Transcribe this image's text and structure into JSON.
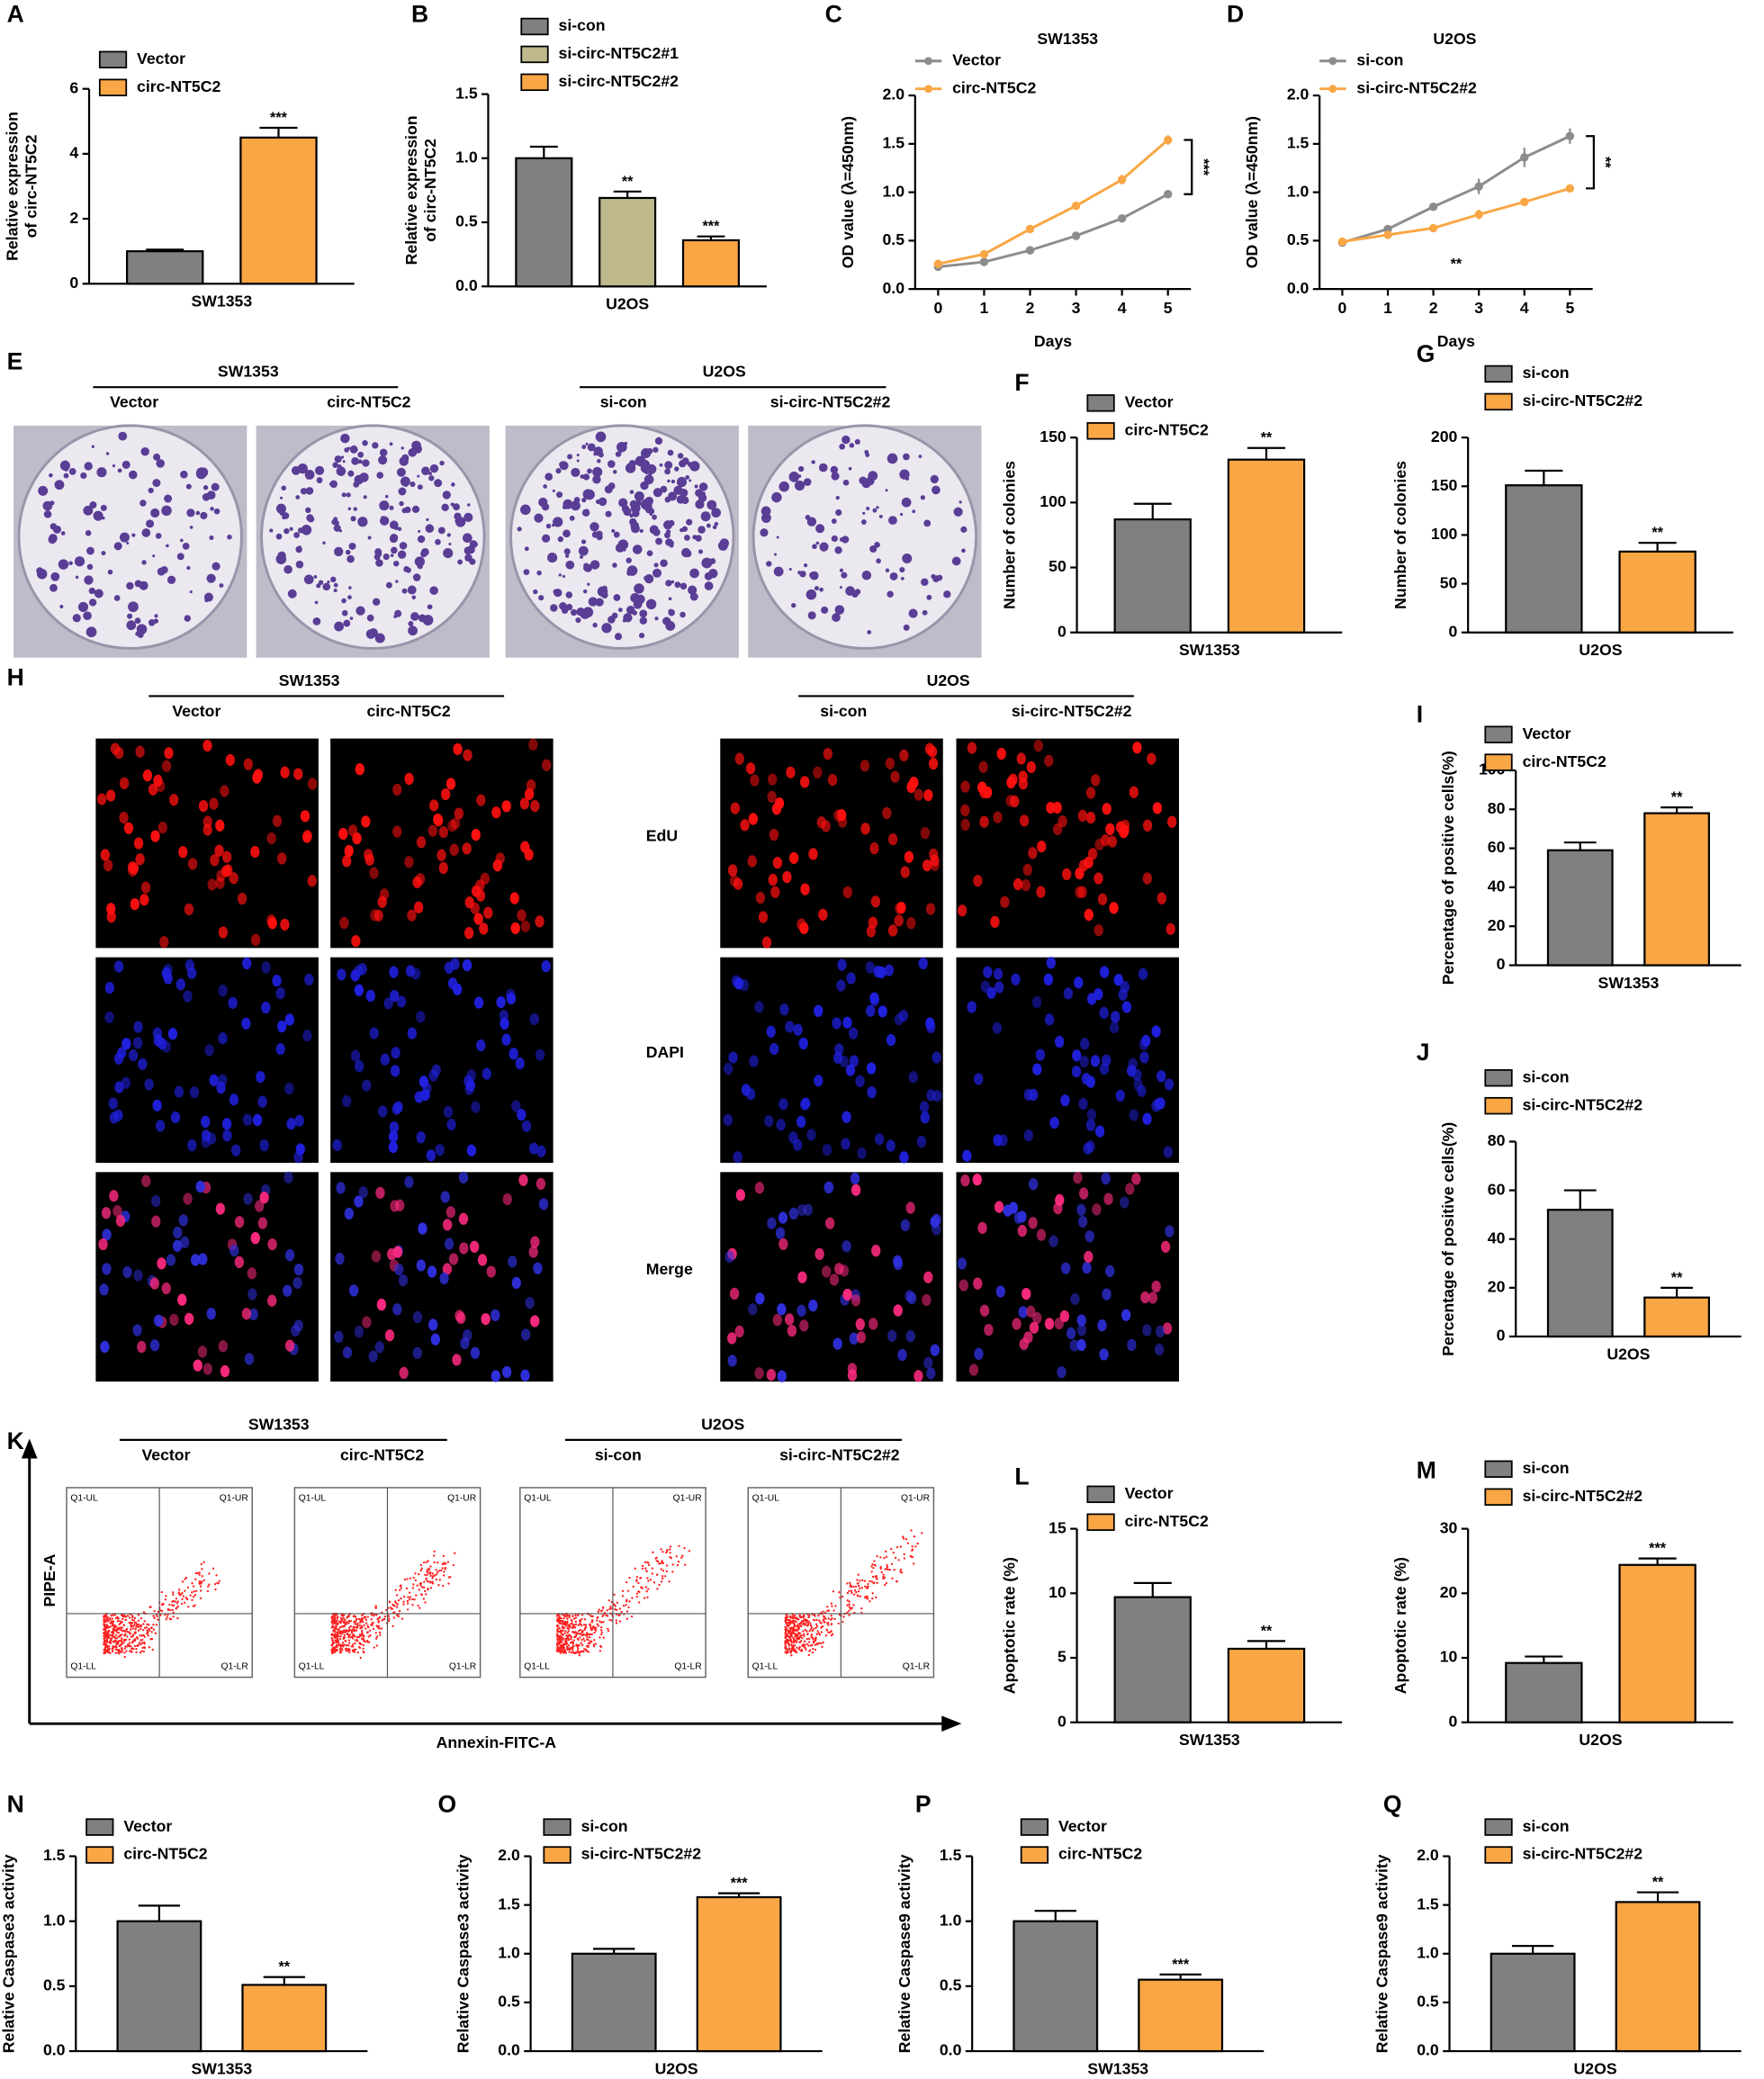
{
  "chart_data": [
    {
      "panel": "A",
      "type": "bar",
      "ylabel": [
        "Relative expression",
        "of circ-NT5C2"
      ],
      "xlabel": "SW1353",
      "ylim": [
        0,
        6
      ],
      "yticks": [
        0,
        2,
        4,
        6
      ],
      "series": [
        {
          "name": "Vector",
          "color": "#808080",
          "values": [
            1.0
          ],
          "errors": [
            0.05
          ]
        },
        {
          "name": "circ-NT5C2",
          "color": "#f9a645",
          "values": [
            4.5
          ],
          "errors": [
            0.3
          ],
          "sig": "***"
        }
      ]
    },
    {
      "panel": "B",
      "type": "bar",
      "ylabel": [
        "Relative expression",
        "of circ-NT5C2"
      ],
      "xlabel": "U2OS",
      "ylim": [
        0,
        1.5
      ],
      "yticks": [
        {
          "value": 0,
          "label": "0.0"
        },
        0.5,
        {
          "value": 1,
          "label": "1.0"
        },
        1.5
      ],
      "series": [
        {
          "name": "si-con",
          "color": "#808080",
          "values": [
            1.0
          ],
          "errors": [
            0.09
          ]
        },
        {
          "name": "si-circ-NT5C2#1",
          "color": "#bdb98c",
          "values": [
            0.69
          ],
          "errors": [
            0.05
          ],
          "sig": "**"
        },
        {
          "name": "si-circ-NT5C2#2",
          "color": "#f9a645",
          "values": [
            0.36
          ],
          "errors": [
            0.03
          ],
          "sig": "***"
        }
      ]
    },
    {
      "panel": "C",
      "type": "line",
      "title": "SW1353",
      "ylabel": [
        "OD value (λ=450nm)"
      ],
      "xlabel": "Days",
      "x": [
        0,
        1,
        2,
        3,
        4,
        5
      ],
      "xlim": [
        -0.5,
        5.5
      ],
      "xticks": [
        0,
        1,
        2,
        3,
        4,
        5
      ],
      "ylim": [
        0,
        2
      ],
      "yticks": [
        {
          "value": 0,
          "label": "0.0"
        },
        0.5,
        {
          "value": 1,
          "label": "1.0"
        },
        1.5,
        {
          "value": 2,
          "label": "2.0"
        }
      ],
      "sig": "***",
      "series": [
        {
          "name": "Vector",
          "color": "#8c8c8c",
          "values": [
            0.23,
            0.28,
            0.4,
            0.55,
            0.73,
            0.98
          ],
          "errors": [
            0.02,
            0.02,
            0.04,
            0.02,
            0.03,
            0.04
          ]
        },
        {
          "name": "circ-NT5C2",
          "color": "#f9a645",
          "values": [
            0.26,
            0.36,
            0.62,
            0.86,
            1.13,
            1.54
          ],
          "errors": [
            0.02,
            0.02,
            0.04,
            0.04,
            0.05,
            0.05
          ]
        }
      ]
    },
    {
      "panel": "D",
      "type": "line",
      "title": "U2OS",
      "ylabel": [
        "OD value (λ=450nm)"
      ],
      "xlabel": "Days",
      "x": [
        0,
        1,
        2,
        3,
        4,
        5
      ],
      "xlim": [
        -0.5,
        5.5
      ],
      "xticks": [
        0,
        1,
        2,
        3,
        4,
        5
      ],
      "ylim": [
        0,
        2
      ],
      "yticks": [
        {
          "value": 0,
          "label": "0.0"
        },
        0.5,
        {
          "value": 1,
          "label": "1.0"
        },
        1.5,
        {
          "value": 2,
          "label": "2.0"
        }
      ],
      "sig": "**",
      "annotation": "**",
      "series": [
        {
          "name": "si-con",
          "color": "#8c8c8c",
          "values": [
            0.48,
            0.62,
            0.85,
            1.06,
            1.36,
            1.58
          ],
          "errors": [
            0.03,
            0.03,
            0.03,
            0.08,
            0.1,
            0.08
          ]
        },
        {
          "name": "si-circ-NT5C2#2",
          "color": "#f9a645",
          "values": [
            0.49,
            0.56,
            0.63,
            0.77,
            0.9,
            1.04
          ],
          "errors": [
            0.03,
            0.02,
            0.02,
            0.05,
            0.03,
            0.04
          ]
        }
      ]
    },
    {
      "panel": "F",
      "type": "bar",
      "ylabel": [
        "Number of colonies"
      ],
      "xlabel": "SW1353",
      "ylim": [
        0,
        150
      ],
      "yticks": [
        0,
        50,
        100,
        150
      ],
      "series": [
        {
          "name": "Vector",
          "color": "#808080",
          "values": [
            87
          ],
          "errors": [
            12
          ]
        },
        {
          "name": "circ-NT5C2",
          "color": "#f9a645",
          "values": [
            133
          ],
          "errors": [
            9
          ],
          "sig": "**"
        }
      ]
    },
    {
      "panel": "G",
      "type": "bar",
      "ylabel": [
        "Number of colonies"
      ],
      "xlabel": "U2OS",
      "ylim": [
        0,
        200
      ],
      "yticks": [
        0,
        50,
        100,
        150,
        200
      ],
      "series": [
        {
          "name": "si-con",
          "color": "#808080",
          "values": [
            151
          ],
          "errors": [
            15
          ]
        },
        {
          "name": "si-circ-NT5C2#2",
          "color": "#f9a645",
          "values": [
            83
          ],
          "errors": [
            9
          ],
          "sig": "**"
        }
      ]
    },
    {
      "panel": "I",
      "type": "bar",
      "ylabel": [
        "Percentage of positive cells(%)"
      ],
      "xlabel": "SW1353",
      "ylim": [
        0,
        100
      ],
      "yticks": [
        0,
        20,
        40,
        60,
        80,
        100
      ],
      "series": [
        {
          "name": "Vector",
          "color": "#808080",
          "values": [
            59
          ],
          "errors": [
            4
          ]
        },
        {
          "name": "circ-NT5C2",
          "color": "#f9a645",
          "values": [
            78
          ],
          "errors": [
            3
          ],
          "sig": "**"
        }
      ]
    },
    {
      "panel": "J",
      "type": "bar",
      "ylabel": [
        "Percentage of positive cells(%)"
      ],
      "xlabel": "U2OS",
      "ylim": [
        0,
        80
      ],
      "yticks": [
        0,
        20,
        40,
        60,
        80
      ],
      "series": [
        {
          "name": "si-con",
          "color": "#808080",
          "values": [
            52
          ],
          "errors": [
            8
          ]
        },
        {
          "name": "si-circ-NT5C2#2",
          "color": "#f9a645",
          "values": [
            16
          ],
          "errors": [
            4
          ],
          "sig": "**"
        }
      ]
    },
    {
      "panel": "L",
      "type": "bar",
      "ylabel": [
        "Apoptotic rate (%)"
      ],
      "xlabel": "SW1353",
      "ylim": [
        0,
        15
      ],
      "yticks": [
        0,
        5,
        10,
        15
      ],
      "series": [
        {
          "name": "Vector",
          "color": "#808080",
          "values": [
            9.7
          ],
          "errors": [
            1.1
          ]
        },
        {
          "name": "circ-NT5C2",
          "color": "#f9a645",
          "values": [
            5.7
          ],
          "errors": [
            0.6
          ],
          "sig": "**"
        }
      ]
    },
    {
      "panel": "M",
      "type": "bar",
      "ylabel": [
        "Apoptotic rate (%)"
      ],
      "xlabel": "U2OS",
      "ylim": [
        0,
        30
      ],
      "yticks": [
        0,
        10,
        20,
        30
      ],
      "series": [
        {
          "name": "si-con",
          "color": "#808080",
          "values": [
            9.2
          ],
          "errors": [
            1
          ]
        },
        {
          "name": "si-circ-NT5C2#2",
          "color": "#f9a645",
          "values": [
            24.4
          ],
          "errors": [
            1
          ],
          "sig": "***"
        }
      ]
    },
    {
      "panel": "N",
      "type": "bar",
      "ylabel": [
        "Relative Caspase3 activity"
      ],
      "xlabel": "SW1353",
      "ylim": [
        0,
        1.5
      ],
      "yticks": [
        {
          "value": 0,
          "label": "0.0"
        },
        0.5,
        {
          "value": 1,
          "label": "1.0"
        },
        1.5
      ],
      "series": [
        {
          "name": "Vector",
          "color": "#808080",
          "values": [
            1.0
          ],
          "errors": [
            0.12
          ]
        },
        {
          "name": "circ-NT5C2",
          "color": "#f9a645",
          "values": [
            0.51
          ],
          "errors": [
            0.06
          ],
          "sig": "**"
        }
      ]
    },
    {
      "panel": "O",
      "type": "bar",
      "ylabel": [
        "Relative Caspase3 activity"
      ],
      "xlabel": "U2OS",
      "ylim": [
        0,
        2
      ],
      "yticks": [
        {
          "value": 0,
          "label": "0.0"
        },
        0.5,
        {
          "value": 1,
          "label": "1.0"
        },
        1.5,
        {
          "value": 2,
          "label": "2.0"
        }
      ],
      "series": [
        {
          "name": "si-con",
          "color": "#808080",
          "values": [
            1.0
          ],
          "errors": [
            0.05
          ]
        },
        {
          "name": "si-circ-NT5C2#2",
          "color": "#f9a645",
          "values": [
            1.58
          ],
          "errors": [
            0.04
          ],
          "sig": "***"
        }
      ]
    },
    {
      "panel": "P",
      "type": "bar",
      "ylabel": [
        "Relative Caspase9 activity"
      ],
      "xlabel": "SW1353",
      "ylim": [
        0,
        1.5
      ],
      "yticks": [
        {
          "value": 0,
          "label": "0.0"
        },
        0.5,
        {
          "value": 1,
          "label": "1.0"
        },
        1.5
      ],
      "series": [
        {
          "name": "Vector",
          "color": "#808080",
          "values": [
            1.0
          ],
          "errors": [
            0.08
          ]
        },
        {
          "name": "circ-NT5C2",
          "color": "#f9a645",
          "values": [
            0.55
          ],
          "errors": [
            0.04
          ],
          "sig": "***"
        }
      ]
    },
    {
      "panel": "Q",
      "type": "bar",
      "ylabel": [
        "Relative Caspase9 activity"
      ],
      "xlabel": "U2OS",
      "ylim": [
        0,
        2
      ],
      "yticks": [
        {
          "value": 0,
          "label": "0.0"
        },
        0.5,
        {
          "value": 1,
          "label": "1.0"
        },
        1.5,
        {
          "value": 2,
          "label": "2.0"
        }
      ],
      "series": [
        {
          "name": "si-con",
          "color": "#808080",
          "values": [
            1.0
          ],
          "errors": [
            0.08
          ]
        },
        {
          "name": "si-circ-NT5C2#2",
          "color": "#f9a645",
          "values": [
            1.53
          ],
          "errors": [
            0.1
          ],
          "sig": "**"
        }
      ]
    }
  ],
  "colony": {
    "panel": "E",
    "groups": [
      {
        "title": "SW1353",
        "labels": [
          "Vector",
          "circ-NT5C2"
        ]
      },
      {
        "title": "U2OS",
        "labels": [
          "si-con",
          "si-circ-NT5C2#2"
        ]
      }
    ]
  },
  "edu": {
    "panel": "H",
    "groups": [
      {
        "title": "SW1353",
        "labels": [
          "Vector",
          "circ-NT5C2"
        ]
      },
      {
        "title": "U2OS",
        "labels": [
          "si-con",
          "si-circ-NT5C2#2"
        ]
      }
    ],
    "rows": [
      "EdU",
      "DAPI",
      "Merge"
    ]
  },
  "flow": {
    "panel": "K",
    "groups": [
      {
        "title": "SW1353",
        "labels": [
          "Vector",
          "circ-NT5C2"
        ]
      },
      {
        "title": "U2OS",
        "labels": [
          "si-con",
          "si-circ-NT5C2#2"
        ]
      }
    ],
    "quadrants": [
      "Q1-UL",
      "Q1-UR",
      "Q1-LL",
      "Q1-LR"
    ],
    "ylabel": "PIPE-A",
    "xlabel": "Annexin-FITC-A"
  }
}
